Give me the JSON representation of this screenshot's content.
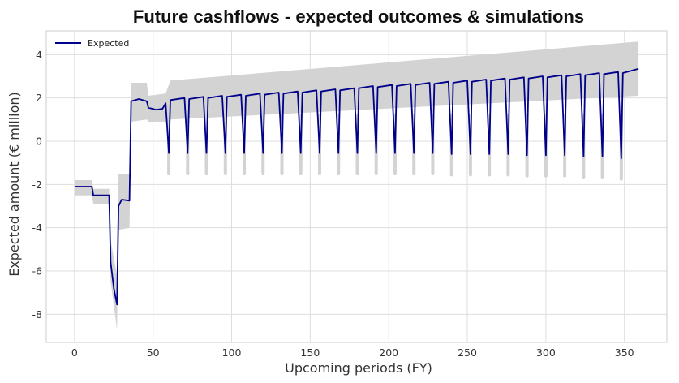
{
  "chart_data": {
    "type": "line",
    "title": "Future cashflows - expected outcomes & simulations",
    "xlabel": "Upcoming periods (FY)",
    "ylabel": "Expected amount (€ million)",
    "xlim": [
      -18,
      377
    ],
    "ylim": [
      -9.3,
      5.1
    ],
    "xticks": [
      0,
      50,
      100,
      150,
      200,
      250,
      300,
      350
    ],
    "yticks": [
      -8,
      -6,
      -4,
      -2,
      0,
      2,
      4
    ],
    "grid": true,
    "legend": {
      "position": "top-left",
      "entries": [
        "Expected"
      ]
    },
    "colors": {
      "expected": "#00008b",
      "simulations": "#d3d3d3",
      "grid": "#dddddd",
      "frame": "#cccccc"
    },
    "series": [
      {
        "name": "Expected",
        "description_of_shape": "periodic cashflow with yearly dips",
        "points": [
          [
            0,
            -2.1
          ],
          [
            11,
            -2.1
          ],
          [
            12,
            -2.5
          ],
          [
            22,
            -2.5
          ],
          [
            23,
            -5.6
          ],
          [
            25,
            -6.8
          ],
          [
            27,
            -7.55
          ],
          [
            28,
            -3.0
          ],
          [
            30,
            -2.7
          ],
          [
            35,
            -2.75
          ],
          [
            36,
            1.85
          ],
          [
            41,
            1.95
          ],
          [
            46,
            1.85
          ],
          [
            47,
            1.55
          ],
          [
            52,
            1.45
          ],
          [
            56,
            1.5
          ],
          [
            58,
            1.75
          ],
          [
            60,
            -0.55
          ],
          [
            61,
            1.9
          ],
          [
            70,
            2.0
          ],
          [
            72,
            -0.55
          ],
          [
            73,
            1.95
          ],
          [
            82,
            2.05
          ],
          [
            84,
            -0.55
          ],
          [
            85,
            2.0
          ],
          [
            94,
            2.1
          ],
          [
            96,
            -0.55
          ],
          [
            97,
            2.05
          ],
          [
            106,
            2.15
          ],
          [
            108,
            -0.55
          ],
          [
            109,
            2.1
          ],
          [
            118,
            2.2
          ],
          [
            120,
            -0.55
          ],
          [
            121,
            2.15
          ],
          [
            130,
            2.25
          ],
          [
            132,
            -0.55
          ],
          [
            133,
            2.2
          ],
          [
            142,
            2.3
          ],
          [
            144,
            -0.55
          ],
          [
            145,
            2.25
          ],
          [
            154,
            2.35
          ],
          [
            156,
            -0.55
          ],
          [
            157,
            2.3
          ],
          [
            166,
            2.4
          ],
          [
            168,
            -0.55
          ],
          [
            169,
            2.35
          ],
          [
            178,
            2.45
          ],
          [
            180,
            -0.55
          ],
          [
            181,
            2.45
          ],
          [
            190,
            2.55
          ],
          [
            192,
            -0.55
          ],
          [
            193,
            2.5
          ],
          [
            202,
            2.6
          ],
          [
            204,
            -0.55
          ],
          [
            205,
            2.55
          ],
          [
            214,
            2.65
          ],
          [
            216,
            -0.55
          ],
          [
            217,
            2.6
          ],
          [
            226,
            2.7
          ],
          [
            228,
            -0.55
          ],
          [
            229,
            2.65
          ],
          [
            238,
            2.75
          ],
          [
            240,
            -0.6
          ],
          [
            241,
            2.7
          ],
          [
            250,
            2.8
          ],
          [
            252,
            -0.6
          ],
          [
            253,
            2.75
          ],
          [
            262,
            2.85
          ],
          [
            264,
            -0.6
          ],
          [
            265,
            2.8
          ],
          [
            274,
            2.9
          ],
          [
            276,
            -0.6
          ],
          [
            277,
            2.85
          ],
          [
            286,
            2.95
          ],
          [
            288,
            -0.65
          ],
          [
            289,
            2.9
          ],
          [
            298,
            3.0
          ],
          [
            300,
            -0.65
          ],
          [
            301,
            2.95
          ],
          [
            310,
            3.05
          ],
          [
            312,
            -0.65
          ],
          [
            313,
            3.0
          ],
          [
            322,
            3.1
          ],
          [
            324,
            -0.7
          ],
          [
            325,
            3.05
          ],
          [
            334,
            3.15
          ],
          [
            336,
            -0.7
          ],
          [
            337,
            3.1
          ],
          [
            346,
            3.2
          ],
          [
            348,
            -0.8
          ],
          [
            349,
            3.15
          ],
          [
            359,
            3.35
          ]
        ]
      },
      {
        "name": "Simulations",
        "band": {
          "x": [
            0,
            11,
            12,
            22,
            23,
            27,
            28,
            35,
            36,
            46,
            47,
            58,
            61,
            359
          ],
          "lower": [
            -2.5,
            -2.5,
            -2.9,
            -2.9,
            -6.5,
            -8.7,
            -4.1,
            -4.0,
            0.9,
            1.0,
            0.9,
            0.9,
            1.0,
            2.1
          ],
          "upper": [
            -1.8,
            -1.8,
            -2.2,
            -2.2,
            -4.6,
            -6.2,
            -1.5,
            -1.5,
            2.7,
            2.7,
            2.1,
            2.2,
            2.8,
            4.6
          ]
        }
      }
    ]
  }
}
